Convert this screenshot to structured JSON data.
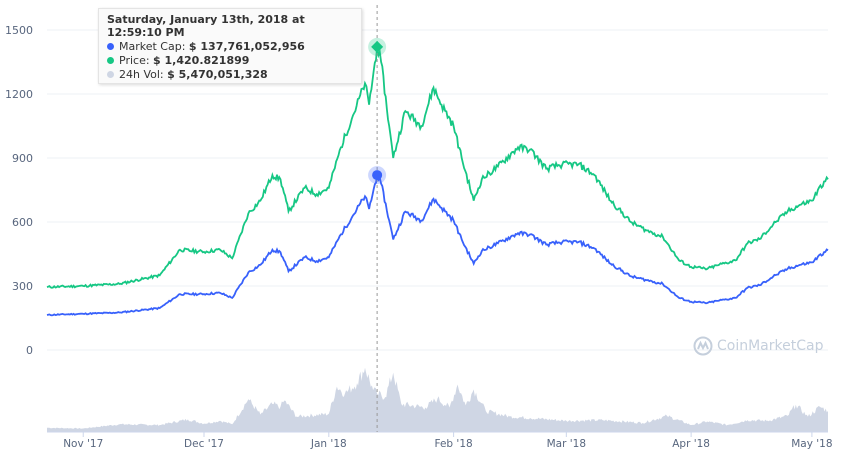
{
  "chart_data": {
    "type": "line",
    "x_axis": {
      "ticks": [
        "Nov '17",
        "Dec '17",
        "Jan '18",
        "Feb '18",
        "Mar '18",
        "Apr '18",
        "May '18"
      ],
      "tick_dates": [
        "2017-11-01",
        "2017-12-01",
        "2018-01-01",
        "2018-02-01",
        "2018-03-01",
        "2018-04-01",
        "2018-05-01"
      ],
      "range": [
        "2017-10-23",
        "2018-05-05"
      ]
    },
    "y_axis": {
      "ticks": [
        0,
        300,
        600,
        900,
        1200,
        1500
      ],
      "range": [
        0,
        1500
      ],
      "grid": true
    },
    "market_cap_axis_range_billions": [
      0,
      252
    ],
    "series": [
      {
        "name": "Market Cap",
        "color": "#3861fb",
        "unit": "USD billions",
        "points": [
          [
            "2017-10-23",
            27.6
          ],
          [
            "2017-11-01",
            28.5
          ],
          [
            "2017-11-10",
            29.5
          ],
          [
            "2017-11-20",
            33
          ],
          [
            "2017-11-25",
            44
          ],
          [
            "2017-12-01",
            44
          ],
          [
            "2017-12-05",
            45
          ],
          [
            "2017-12-08",
            41
          ],
          [
            "2017-12-12",
            61
          ],
          [
            "2017-12-15",
            67
          ],
          [
            "2017-12-18",
            79
          ],
          [
            "2017-12-20",
            77
          ],
          [
            "2017-12-22",
            62
          ],
          [
            "2017-12-26",
            73
          ],
          [
            "2017-12-29",
            70
          ],
          [
            "2018-01-01",
            73
          ],
          [
            "2018-01-04",
            91
          ],
          [
            "2018-01-07",
            106
          ],
          [
            "2018-01-10",
            121
          ],
          [
            "2018-01-11",
            111
          ],
          [
            "2018-01-13",
            137.76
          ],
          [
            "2018-01-14",
            131
          ],
          [
            "2018-01-16",
            102
          ],
          [
            "2018-01-17",
            87
          ],
          [
            "2018-01-20",
            109
          ],
          [
            "2018-01-24",
            102
          ],
          [
            "2018-01-27",
            119
          ],
          [
            "2018-01-29",
            112
          ],
          [
            "2018-02-01",
            102
          ],
          [
            "2018-02-03",
            87
          ],
          [
            "2018-02-06",
            68
          ],
          [
            "2018-02-08",
            78
          ],
          [
            "2018-02-12",
            84
          ],
          [
            "2018-02-17",
            92
          ],
          [
            "2018-02-20",
            91
          ],
          [
            "2018-02-24",
            83
          ],
          [
            "2018-02-28",
            85
          ],
          [
            "2018-03-04",
            85
          ],
          [
            "2018-03-08",
            80
          ],
          [
            "2018-03-12",
            68
          ],
          [
            "2018-03-17",
            58
          ],
          [
            "2018-03-21",
            55
          ],
          [
            "2018-03-25",
            52
          ],
          [
            "2018-03-29",
            41
          ],
          [
            "2018-04-01",
            38
          ],
          [
            "2018-04-05",
            37
          ],
          [
            "2018-04-08",
            39
          ],
          [
            "2018-04-12",
            41
          ],
          [
            "2018-04-15",
            49
          ],
          [
            "2018-04-18",
            51
          ],
          [
            "2018-04-22",
            59
          ],
          [
            "2018-04-25",
            64
          ],
          [
            "2018-04-28",
            67
          ],
          [
            "2018-05-01",
            69
          ],
          [
            "2018-05-04",
            77
          ],
          [
            "2018-05-05",
            78.5
          ]
        ]
      },
      {
        "name": "Price",
        "color": "#16c784",
        "unit": "USD",
        "points": [
          [
            "2017-10-23",
            295
          ],
          [
            "2017-11-01",
            300
          ],
          [
            "2017-11-10",
            310
          ],
          [
            "2017-11-20",
            350
          ],
          [
            "2017-11-25",
            470
          ],
          [
            "2017-12-01",
            460
          ],
          [
            "2017-12-05",
            470
          ],
          [
            "2017-12-08",
            430
          ],
          [
            "2017-12-12",
            640
          ],
          [
            "2017-12-15",
            700
          ],
          [
            "2017-12-18",
            820
          ],
          [
            "2017-12-20",
            800
          ],
          [
            "2017-12-22",
            650
          ],
          [
            "2017-12-26",
            760
          ],
          [
            "2017-12-29",
            730
          ],
          [
            "2018-01-01",
            760
          ],
          [
            "2018-01-04",
            950
          ],
          [
            "2018-01-07",
            1100
          ],
          [
            "2018-01-10",
            1250
          ],
          [
            "2018-01-11",
            1150
          ],
          [
            "2018-01-13",
            1420.82
          ],
          [
            "2018-01-14",
            1350
          ],
          [
            "2018-01-16",
            1050
          ],
          [
            "2018-01-17",
            900
          ],
          [
            "2018-01-20",
            1120
          ],
          [
            "2018-01-24",
            1050
          ],
          [
            "2018-01-27",
            1230
          ],
          [
            "2018-01-29",
            1150
          ],
          [
            "2018-02-01",
            1050
          ],
          [
            "2018-02-03",
            900
          ],
          [
            "2018-02-06",
            700
          ],
          [
            "2018-02-08",
            800
          ],
          [
            "2018-02-12",
            860
          ],
          [
            "2018-02-17",
            950
          ],
          [
            "2018-02-20",
            940
          ],
          [
            "2018-02-24",
            850
          ],
          [
            "2018-02-28",
            870
          ],
          [
            "2018-03-04",
            870
          ],
          [
            "2018-03-08",
            820
          ],
          [
            "2018-03-12",
            700
          ],
          [
            "2018-03-17",
            600
          ],
          [
            "2018-03-21",
            560
          ],
          [
            "2018-03-25",
            530
          ],
          [
            "2018-03-29",
            420
          ],
          [
            "2018-04-01",
            390
          ],
          [
            "2018-04-05",
            380
          ],
          [
            "2018-04-08",
            400
          ],
          [
            "2018-04-12",
            420
          ],
          [
            "2018-04-15",
            500
          ],
          [
            "2018-04-18",
            520
          ],
          [
            "2018-04-22",
            600
          ],
          [
            "2018-04-25",
            650
          ],
          [
            "2018-04-28",
            680
          ],
          [
            "2018-05-01",
            700
          ],
          [
            "2018-05-04",
            790
          ],
          [
            "2018-05-05",
            800
          ]
        ]
      },
      {
        "name": "24h Vol",
        "color": "#cfd6e4",
        "unit": "USD billions",
        "points": [
          [
            "2017-10-23",
            0.6
          ],
          [
            "2017-11-01",
            0.5
          ],
          [
            "2017-11-10",
            1.1
          ],
          [
            "2017-11-20",
            1.0
          ],
          [
            "2017-11-27",
            1.8
          ],
          [
            "2017-12-01",
            1.2
          ],
          [
            "2017-12-05",
            1.6
          ],
          [
            "2017-12-08",
            1.1
          ],
          [
            "2017-12-12",
            4.7
          ],
          [
            "2017-12-15",
            2.5
          ],
          [
            "2017-12-18",
            4.0
          ],
          [
            "2017-12-20",
            3.6
          ],
          [
            "2017-12-21",
            4.5
          ],
          [
            "2017-12-24",
            2.2
          ],
          [
            "2018-01-01",
            2.6
          ],
          [
            "2018-01-03",
            6.5
          ],
          [
            "2018-01-05",
            5.5
          ],
          [
            "2018-01-08",
            7.0
          ],
          [
            "2018-01-10",
            9.2
          ],
          [
            "2018-01-12",
            6.0
          ],
          [
            "2018-01-13",
            5.47
          ],
          [
            "2018-01-15",
            5.0
          ],
          [
            "2018-01-17",
            8.5
          ],
          [
            "2018-01-19",
            4.0
          ],
          [
            "2018-01-25",
            3.5
          ],
          [
            "2018-01-28",
            4.8
          ],
          [
            "2018-01-31",
            3.5
          ],
          [
            "2018-02-02",
            6.8
          ],
          [
            "2018-02-04",
            3.8
          ],
          [
            "2018-02-06",
            6.1
          ],
          [
            "2018-02-09",
            3.0
          ],
          [
            "2018-02-15",
            2.2
          ],
          [
            "2018-02-20",
            2.0
          ],
          [
            "2018-03-01",
            1.6
          ],
          [
            "2018-03-10",
            1.7
          ],
          [
            "2018-03-20",
            1.3
          ],
          [
            "2018-03-26",
            2.3
          ],
          [
            "2018-04-01",
            1.0
          ],
          [
            "2018-04-05",
            1.5
          ],
          [
            "2018-04-10",
            1.0
          ],
          [
            "2018-04-15",
            1.7
          ],
          [
            "2018-04-20",
            1.6
          ],
          [
            "2018-04-25",
            2.3
          ],
          [
            "2018-04-27",
            3.9
          ],
          [
            "2018-04-30",
            2.2
          ],
          [
            "2018-05-03",
            3.6
          ],
          [
            "2018-05-05",
            3.0
          ]
        ]
      }
    ]
  },
  "tooltip": {
    "title": "Saturday, January 13th, 2018 at 12:59:10 PM",
    "date": "2018-01-13",
    "rows": [
      {
        "label": "Market Cap:",
        "value": "$ 137,761,052,956",
        "color": "#3861fb"
      },
      {
        "label": "Price:",
        "value": "$ 1,420.821899",
        "color": "#16c784"
      },
      {
        "label": "24h Vol:",
        "value": "$ 5,470,051,328",
        "color": "#cfd6e4"
      }
    ]
  },
  "watermark": "CoinMarketCap"
}
